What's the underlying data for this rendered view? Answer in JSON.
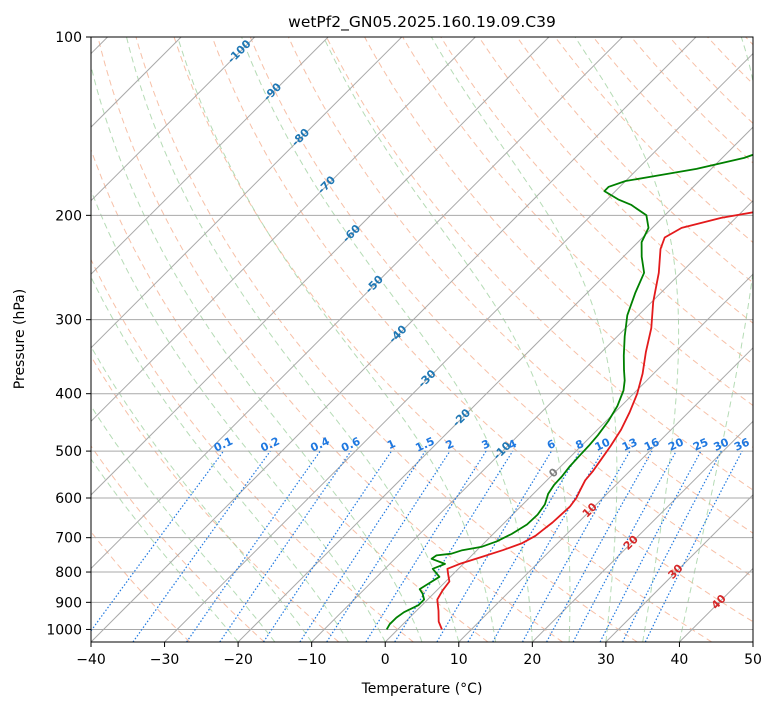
{
  "chart_data": {
    "type": "line",
    "subtype": "skew-t log-p",
    "title": "wetPf2_GN05.2025.160.19.09.C39",
    "xlabel": "Temperature (°C)",
    "ylabel": "Pressure (hPa)",
    "xlim": [
      -40,
      50
    ],
    "ylim": [
      1050,
      100
    ],
    "yscale": "log",
    "x_ticks": [
      -40,
      -30,
      -20,
      -10,
      0,
      10,
      20,
      30,
      40,
      50
    ],
    "x_tick_labels": [
      "−40",
      "−30",
      "−20",
      "−10",
      "0",
      "10",
      "20",
      "30",
      "40",
      "50"
    ],
    "y_ticks": [
      1000,
      900,
      800,
      700,
      600,
      500,
      400,
      300,
      200,
      100
    ],
    "y_tick_labels": [
      "1000",
      "900",
      "800",
      "700",
      "600",
      "500",
      "400",
      "300",
      "200",
      "100"
    ],
    "grid": true,
    "colors": {
      "temperature": "#e31a1c",
      "dewpoint": "#008000",
      "isotherm": "#a9a9a9",
      "dry_adiabat": "#f4a582",
      "moist_adiabat": "#9ccf9c",
      "mixing_ratio": "#1f78e0",
      "isotherm_label_cold": "#1f77b4",
      "isotherm_label_warm": "#d62728"
    },
    "series": [
      {
        "key": "temperature",
        "points": [
          [
            6,
            1000
          ],
          [
            4.5,
            970
          ],
          [
            3,
            930
          ],
          [
            1.3,
            890
          ],
          [
            0.8,
            860
          ],
          [
            0.5,
            830
          ],
          [
            -0.5,
            810
          ],
          [
            -1.5,
            790
          ],
          [
            -0.5,
            775
          ],
          [
            0.5,
            765
          ],
          [
            1.5,
            755
          ],
          [
            3.5,
            735
          ],
          [
            5.2,
            715
          ],
          [
            6,
            695
          ],
          [
            6.2,
            680
          ],
          [
            6.5,
            660
          ],
          [
            6.6,
            640
          ],
          [
            6.7,
            620
          ],
          [
            6.4,
            600
          ],
          [
            5.8,
            580
          ],
          [
            5.2,
            560
          ],
          [
            5,
            540
          ],
          [
            4.6,
            520
          ],
          [
            4,
            490
          ],
          [
            3.2,
            460
          ],
          [
            2,
            430
          ],
          [
            0.5,
            400
          ],
          [
            -1.5,
            370
          ],
          [
            -4,
            340
          ],
          [
            -6.5,
            310
          ],
          [
            -9.8,
            280
          ],
          [
            -13,
            250
          ],
          [
            -16,
            228
          ],
          [
            -17,
            218
          ],
          [
            -16,
            210
          ],
          [
            -12,
            202
          ],
          [
            -7,
            196
          ],
          [
            -3,
            190
          ],
          [
            -1,
            185
          ],
          [
            1,
            175
          ],
          [
            3,
            165
          ],
          [
            7,
            150
          ],
          [
            11,
            137
          ],
          [
            15,
            125
          ],
          [
            19,
            115
          ],
          [
            22,
            108
          ],
          [
            24,
            100
          ]
        ]
      },
      {
        "key": "dewpoint",
        "points": [
          [
            -1.5,
            1000
          ],
          [
            -1.8,
            980
          ],
          [
            -1.8,
            955
          ],
          [
            -1.5,
            935
          ],
          [
            -0.5,
            910
          ],
          [
            -0.5,
            890
          ],
          [
            -1.5,
            870
          ],
          [
            -2.5,
            855
          ],
          [
            -2,
            835
          ],
          [
            -1.5,
            815
          ],
          [
            -3.5,
            790
          ],
          [
            -2.5,
            775
          ],
          [
            -5,
            760
          ],
          [
            -4.8,
            750
          ],
          [
            -3,
            745
          ],
          [
            -2,
            735
          ],
          [
            0.2,
            725
          ],
          [
            1.5,
            710
          ],
          [
            2.5,
            690
          ],
          [
            3.3,
            665
          ],
          [
            3.4,
            640
          ],
          [
            3,
            615
          ],
          [
            2,
            590
          ],
          [
            1.6,
            570
          ],
          [
            1.5,
            550
          ],
          [
            1.2,
            530
          ],
          [
            1.1,
            510
          ],
          [
            1,
            490
          ],
          [
            0.8,
            470
          ],
          [
            0.3,
            445
          ],
          [
            -0.5,
            420
          ],
          [
            -1.8,
            395
          ],
          [
            -3,
            380
          ],
          [
            -4.5,
            365
          ],
          [
            -6.5,
            345
          ],
          [
            -9,
            320
          ],
          [
            -11.5,
            295
          ],
          [
            -13.5,
            270
          ],
          [
            -15,
            250
          ],
          [
            -17.5,
            235
          ],
          [
            -19.5,
            222
          ],
          [
            -20.5,
            210
          ],
          [
            -22.5,
            200
          ],
          [
            -26,
            192
          ],
          [
            -28.5,
            188
          ],
          [
            -31.5,
            182
          ],
          [
            -31.5,
            179
          ],
          [
            -30,
            175
          ],
          [
            -27,
            172
          ],
          [
            -22,
            167
          ],
          [
            -17,
            160
          ],
          [
            -13,
            150
          ],
          [
            -8,
            138
          ],
          [
            -5,
            125
          ],
          [
            -3,
            115
          ],
          [
            -1,
            106
          ],
          [
            0.5,
            100
          ]
        ]
      }
    ],
    "isotherm_labels": [
      {
        "text": "-100",
        "temp": -100,
        "p": 106
      },
      {
        "text": "-90",
        "temp": -90,
        "p": 124
      },
      {
        "text": "-80",
        "temp": -80,
        "p": 148
      },
      {
        "text": "-70",
        "temp": -70,
        "p": 178
      },
      {
        "text": "-60",
        "temp": -60,
        "p": 215
      },
      {
        "text": "-50",
        "temp": -50,
        "p": 262
      },
      {
        "text": "-40",
        "temp": -40,
        "p": 318
      },
      {
        "text": "-30",
        "temp": -30,
        "p": 378
      },
      {
        "text": "-20",
        "temp": -20,
        "p": 440
      },
      {
        "text": "-10",
        "temp": -10,
        "p": 500
      },
      {
        "text": "0",
        "temp": 0,
        "p": 545
      },
      {
        "text": "10",
        "temp": 10,
        "p": 630
      },
      {
        "text": "20",
        "temp": 20,
        "p": 715
      },
      {
        "text": "30",
        "temp": 30,
        "p": 800
      },
      {
        "text": "40",
        "temp": 40,
        "p": 900
      }
    ],
    "mixing_ratio_labels": [
      "0.1",
      "0.2",
      "0.4",
      "0.6",
      "1",
      "1.5",
      "2",
      "3",
      "4",
      "6",
      "8",
      "10",
      "13",
      "16",
      "20",
      "25",
      "30",
      "36"
    ],
    "mixing_ratio_values": [
      0.1,
      0.2,
      0.4,
      0.6,
      1,
      1.5,
      2,
      3,
      4,
      6,
      8,
      10,
      13,
      16,
      20,
      25,
      30,
      36
    ],
    "mixing_ratio_label_pressure": 500
  }
}
